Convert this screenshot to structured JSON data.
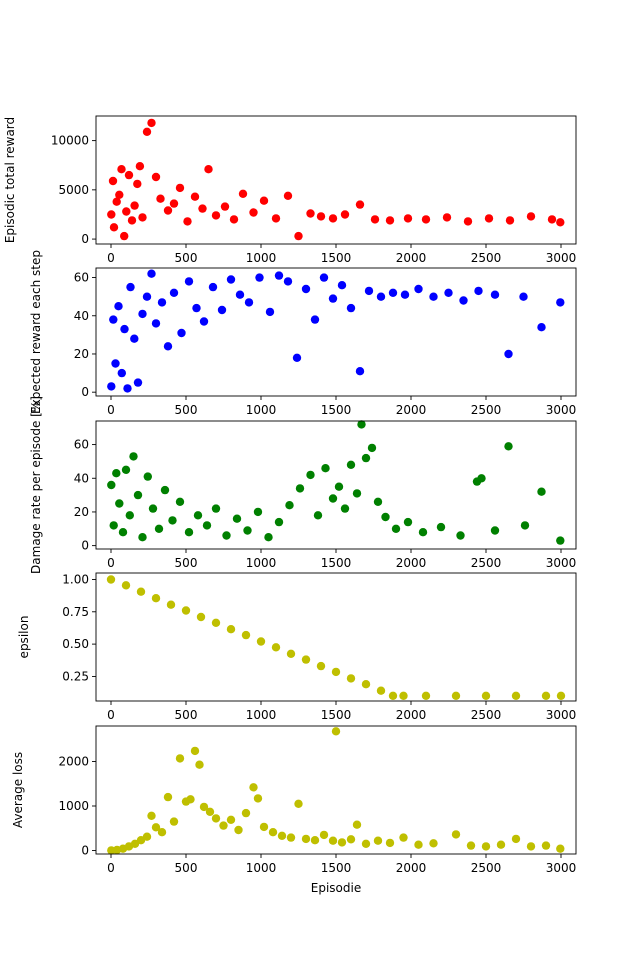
{
  "chart_data": [
    {
      "type": "scatter",
      "ylabel": "Episodic total reward",
      "xlabel": "",
      "color": "#ff0000",
      "xlim": [
        -100,
        3100
      ],
      "ylim": [
        -500,
        12500
      ],
      "xticks": [
        0,
        500,
        1000,
        1500,
        2000,
        2500,
        3000
      ],
      "xtick_labels": [
        "0",
        "500",
        "1000",
        "1500",
        "2000",
        "2500",
        "3000"
      ],
      "yticks": [
        0,
        5000,
        10000
      ],
      "ytick_labels": [
        "0",
        "5000",
        "10000"
      ],
      "grid": false,
      "x": [
        2,
        13,
        20,
        38,
        55,
        70,
        88,
        102,
        120,
        140,
        157,
        175,
        193,
        210,
        240,
        270,
        300,
        330,
        380,
        420,
        460,
        510,
        560,
        610,
        650,
        700,
        760,
        820,
        880,
        950,
        1020,
        1100,
        1180,
        1250,
        1330,
        1400,
        1480,
        1560,
        1660,
        1760,
        1860,
        1980,
        2100,
        2240,
        2380,
        2520,
        2660,
        2800,
        2940,
        2995
      ],
      "y": [
        2500,
        5900,
        1200,
        3800,
        4500,
        7100,
        300,
        2800,
        6500,
        1900,
        3400,
        5600,
        7400,
        2200,
        10900,
        11800,
        6300,
        4100,
        2900,
        3600,
        5200,
        1800,
        4300,
        3100,
        7100,
        2400,
        3300,
        2000,
        4600,
        2700,
        3900,
        2100,
        4400,
        300,
        2600,
        2300,
        2100,
        2500,
        3500,
        2000,
        1900,
        2100,
        2000,
        2200,
        1800,
        2100,
        1900,
        2300,
        2000,
        1700
      ]
    },
    {
      "type": "scatter",
      "ylabel": "Expected reward each step",
      "xlabel": "",
      "color": "#0000ff",
      "xlim": [
        -100,
        3100
      ],
      "ylim": [
        -2,
        65
      ],
      "xticks": [
        0,
        500,
        1000,
        1500,
        2000,
        2500,
        3000
      ],
      "xtick_labels": [
        "0",
        "500",
        "1000",
        "1500",
        "2000",
        "2500",
        "3000"
      ],
      "yticks": [
        0,
        20,
        40,
        60
      ],
      "ytick_labels": [
        "0",
        "20",
        "40",
        "60"
      ],
      "grid": false,
      "x": [
        2,
        15,
        30,
        50,
        72,
        90,
        110,
        130,
        155,
        180,
        210,
        240,
        270,
        300,
        340,
        380,
        420,
        470,
        520,
        570,
        620,
        680,
        740,
        800,
        860,
        920,
        990,
        1060,
        1120,
        1180,
        1240,
        1300,
        1360,
        1420,
        1480,
        1540,
        1600,
        1660,
        1720,
        1800,
        1880,
        1960,
        2050,
        2150,
        2250,
        2350,
        2450,
        2560,
        2650,
        2750,
        2870,
        2995
      ],
      "y": [
        3,
        38,
        15,
        45,
        10,
        33,
        2,
        55,
        28,
        5,
        41,
        50,
        62,
        36,
        47,
        24,
        52,
        31,
        58,
        44,
        37,
        55,
        43,
        59,
        51,
        47,
        60,
        42,
        61,
        58,
        18,
        54,
        38,
        60,
        49,
        56,
        44,
        11,
        53,
        50,
        52,
        51,
        54,
        50,
        52,
        48,
        53,
        51,
        20,
        50,
        34,
        47
      ]
    },
    {
      "type": "scatter",
      "ylabel": "Damage rate per episode [%]",
      "xlabel": "",
      "color": "#008000",
      "xlim": [
        -100,
        3100
      ],
      "ylim": [
        -2,
        74
      ],
      "xticks": [
        0,
        500,
        1000,
        1500,
        2000,
        2500,
        3000
      ],
      "xtick_labels": [
        "0",
        "500",
        "1000",
        "1500",
        "2000",
        "2500",
        "3000"
      ],
      "yticks": [
        0,
        20,
        40,
        60
      ],
      "ytick_labels": [
        "0",
        "20",
        "40",
        "60"
      ],
      "grid": false,
      "x": [
        2,
        18,
        35,
        55,
        80,
        100,
        125,
        150,
        180,
        210,
        245,
        280,
        320,
        360,
        410,
        460,
        520,
        580,
        640,
        700,
        770,
        840,
        910,
        980,
        1050,
        1120,
        1190,
        1260,
        1330,
        1380,
        1430,
        1480,
        1520,
        1560,
        1600,
        1640,
        1670,
        1700,
        1740,
        1780,
        1830,
        1900,
        1980,
        2080,
        2200,
        2330,
        2440,
        2470,
        2560,
        2650,
        2760,
        2870,
        2995
      ],
      "y": [
        36,
        12,
        43,
        25,
        8,
        45,
        18,
        53,
        30,
        5,
        41,
        22,
        10,
        33,
        15,
        26,
        8,
        18,
        12,
        22,
        6,
        16,
        9,
        20,
        5,
        14,
        24,
        34,
        42,
        18,
        46,
        28,
        35,
        22,
        48,
        31,
        72,
        52,
        58,
        26,
        17,
        10,
        14,
        8,
        11,
        6,
        38,
        40,
        9,
        59,
        12,
        32,
        3
      ]
    },
    {
      "type": "scatter",
      "ylabel": "epsilon",
      "xlabel": "",
      "color": "#bfbf00",
      "xlim": [
        -100,
        3100
      ],
      "ylim": [
        0.06,
        1.05
      ],
      "xticks": [
        0,
        500,
        1000,
        1500,
        2000,
        2500,
        3000
      ],
      "xtick_labels": [
        "0",
        "500",
        "1000",
        "1500",
        "2000",
        "2500",
        "3000"
      ],
      "yticks": [
        0.25,
        0.5,
        0.75,
        1.0
      ],
      "ytick_labels": [
        "0.25",
        "0.50",
        "0.75",
        "1.00"
      ],
      "grid": false,
      "x": [
        0,
        100,
        200,
        300,
        400,
        500,
        600,
        700,
        800,
        900,
        1000,
        1100,
        1200,
        1300,
        1400,
        1500,
        1600,
        1700,
        1800,
        1880,
        1950,
        2100,
        2300,
        2500,
        2700,
        2900,
        3000
      ],
      "y": [
        1.0,
        0.955,
        0.905,
        0.855,
        0.805,
        0.76,
        0.71,
        0.665,
        0.615,
        0.57,
        0.52,
        0.475,
        0.425,
        0.38,
        0.33,
        0.285,
        0.235,
        0.19,
        0.14,
        0.1,
        0.1,
        0.1,
        0.1,
        0.1,
        0.1,
        0.1,
        0.1
      ]
    },
    {
      "type": "scatter",
      "ylabel": "Average loss",
      "xlabel": "Episodie",
      "color": "#bfbf00",
      "xlim": [
        -100,
        3100
      ],
      "ylim": [
        -80,
        2800
      ],
      "xticks": [
        0,
        500,
        1000,
        1500,
        2000,
        2500,
        3000
      ],
      "xtick_labels": [
        "0",
        "500",
        "1000",
        "1500",
        "2000",
        "2500",
        "3000"
      ],
      "yticks": [
        0,
        1000,
        2000
      ],
      "ytick_labels": [
        "0",
        "1000",
        "2000"
      ],
      "grid": false,
      "x": [
        2,
        40,
        80,
        120,
        160,
        200,
        240,
        270,
        300,
        340,
        380,
        420,
        460,
        500,
        530,
        560,
        590,
        620,
        660,
        700,
        750,
        800,
        850,
        900,
        950,
        980,
        1020,
        1080,
        1140,
        1200,
        1250,
        1300,
        1360,
        1420,
        1480,
        1500,
        1540,
        1600,
        1640,
        1700,
        1780,
        1860,
        1950,
        2050,
        2150,
        2300,
        2400,
        2500,
        2600,
        2700,
        2800,
        2900,
        2995
      ],
      "y": [
        0,
        10,
        40,
        90,
        150,
        230,
        310,
        780,
        520,
        410,
        1200,
        650,
        2070,
        1100,
        1150,
        2240,
        1930,
        980,
        870,
        720,
        560,
        690,
        460,
        840,
        1420,
        1170,
        530,
        410,
        330,
        290,
        1050,
        260,
        230,
        350,
        220,
        2680,
        180,
        250,
        580,
        150,
        220,
        170,
        290,
        130,
        160,
        360,
        110,
        90,
        130,
        260,
        90,
        110,
        40
      ]
    }
  ]
}
